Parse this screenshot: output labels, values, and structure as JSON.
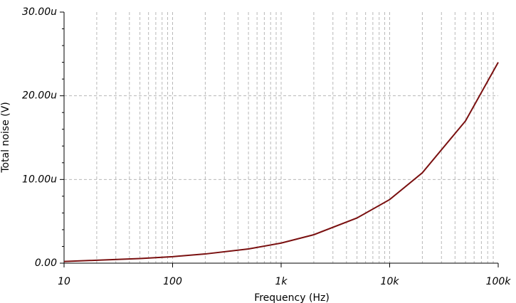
{
  "chart_data": {
    "type": "line",
    "xlabel": "Frequency (Hz)",
    "ylabel": "Total noise (V)",
    "xscale": "log",
    "grid": true,
    "x": [
      10,
      20,
      50,
      100,
      200,
      500,
      1000,
      2000,
      5000,
      10000,
      20000,
      50000,
      100000
    ],
    "series": [
      {
        "name": "Total noise",
        "color": "#7a1010",
        "values": [
          2e-07,
          3.5e-07,
          5.5e-07,
          7.8e-07,
          1.1e-06,
          1.7e-06,
          2.4e-06,
          3.4e-06,
          5.4e-06,
          7.6e-06,
          1.08e-05,
          1.7e-05,
          2.4e-05
        ]
      }
    ],
    "xlim": [
      10,
      100000
    ],
    "xticks": [
      10,
      100,
      {
        "value": 1000,
        "label": "1k"
      },
      {
        "value": 10000,
        "label": "10k"
      },
      {
        "value": 100000,
        "label": "100k"
      }
    ],
    "ylim": [
      0,
      3e-05
    ],
    "yticks": [
      {
        "value": 0,
        "label": "0.00"
      },
      {
        "value": 1e-05,
        "label": "10.00u"
      },
      {
        "value": 2e-05,
        "label": "20.00u"
      },
      {
        "value": 3e-05,
        "label": "30.00u"
      }
    ]
  }
}
